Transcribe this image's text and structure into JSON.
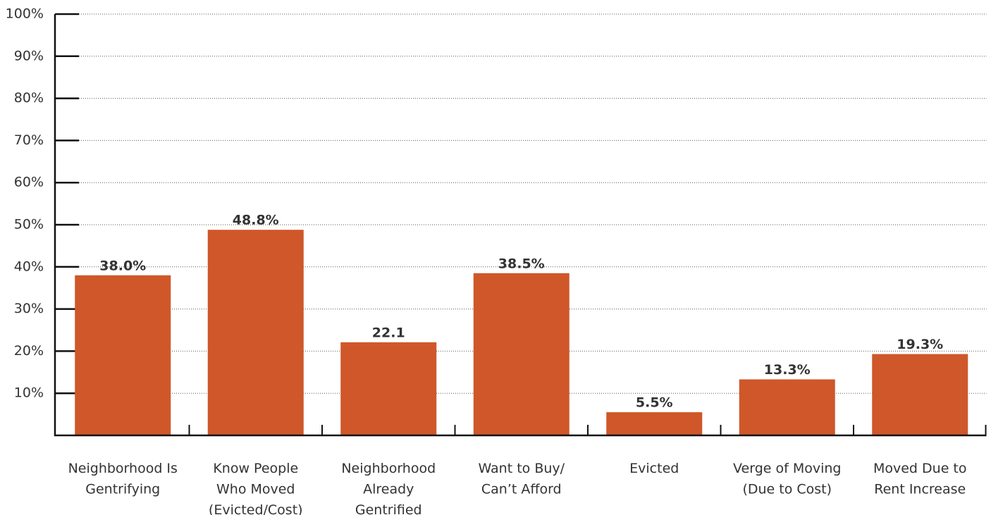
{
  "chart_data": {
    "type": "bar",
    "categories": [
      [
        "Neighborhood Is",
        "Gentrifying"
      ],
      [
        "Know People",
        "Who Moved",
        "(Evicted/Cost)"
      ],
      [
        "Neighborhood",
        "Already",
        "Gentrified"
      ],
      [
        "Want to Buy/",
        "Can’t Afford"
      ],
      [
        "Evicted"
      ],
      [
        "Verge of Moving",
        "(Due to Cost)"
      ],
      [
        "Moved Due to",
        "Rent Increase"
      ]
    ],
    "values": [
      38.0,
      48.8,
      22.1,
      38.5,
      5.5,
      13.3,
      19.3
    ],
    "value_labels": [
      "38.0%",
      "48.8%",
      "22.1",
      "38.5%",
      "5.5%",
      "13.3%",
      "19.3%"
    ],
    "color": "#cf572a",
    "ylim": [
      0,
      100
    ],
    "yticks": [
      {
        "value": 10,
        "label": "10%"
      },
      {
        "value": 20,
        "label": "20%"
      },
      {
        "value": 30,
        "label": "30%"
      },
      {
        "value": 40,
        "label": "40%"
      },
      {
        "value": 50,
        "label": "50%"
      },
      {
        "value": 60,
        "label": "60%"
      },
      {
        "value": 70,
        "label": "70%"
      },
      {
        "value": 80,
        "label": "80%"
      },
      {
        "value": 90,
        "label": "90%"
      },
      {
        "value": 100,
        "label": "100%"
      }
    ],
    "grid": true
  }
}
